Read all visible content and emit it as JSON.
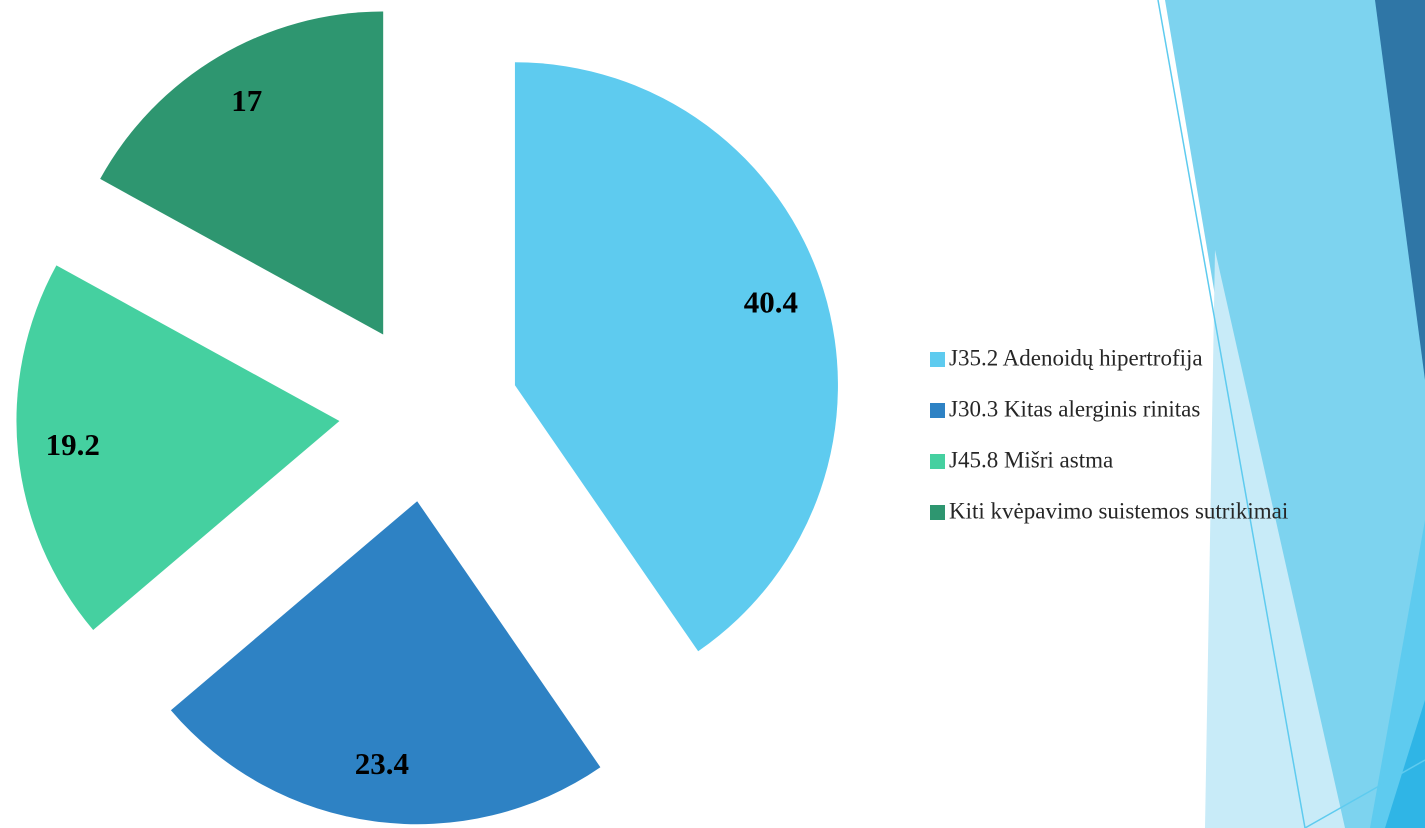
{
  "chart_data": {
    "type": "pie",
    "categories": [
      "J35.2 Adenoidų hipertrofija",
      "J30.3 Kitas alerginis rinitas",
      "J45.8 Mišri astma",
      "Kiti kvėpavimo suistemos sutrikimai"
    ],
    "values": [
      40.4,
      23.4,
      19.2,
      17
    ],
    "colors": [
      "#5ecbef",
      "#2e82c4",
      "#45d0a0",
      "#2e9670"
    ],
    "legend": "right"
  }
}
